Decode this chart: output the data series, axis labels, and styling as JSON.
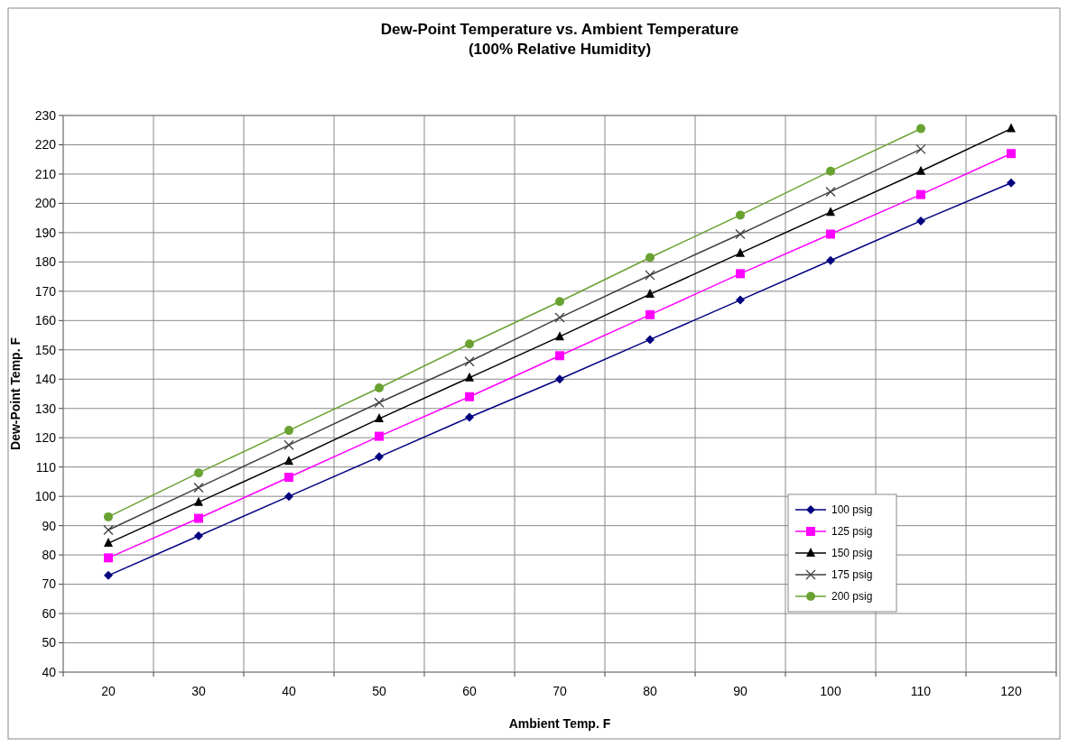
{
  "chart_data": {
    "type": "line",
    "title": "Dew-Point Temperature vs. Ambient Temperature",
    "subtitle": "(100% Relative Humidity)",
    "xlabel": "Ambient Temp. F",
    "ylabel": "Dew-Point Temp. F",
    "categories": [
      "20",
      "30",
      "40",
      "50",
      "60",
      "70",
      "80",
      "90",
      "100",
      "110",
      "120"
    ],
    "ylim": [
      40,
      230
    ],
    "yticks": [
      40,
      50,
      60,
      70,
      80,
      90,
      100,
      110,
      120,
      130,
      140,
      150,
      160,
      170,
      180,
      190,
      200,
      210,
      220,
      230
    ],
    "grid": true,
    "legend": "bottom right",
    "line_style": "solid",
    "series": [
      {
        "name": "100 psig",
        "color": "#000080",
        "marker": "diamond",
        "values": [
          73,
          86.5,
          100,
          113.5,
          127,
          140,
          153.5,
          167,
          180.5,
          194,
          207
        ]
      },
      {
        "name": "125 psig",
        "color": "#ff00ff",
        "marker": "square",
        "values": [
          79,
          92.5,
          106.5,
          120.5,
          134,
          148,
          162,
          176,
          189.5,
          203,
          217
        ]
      },
      {
        "name": "150 psig",
        "color": "#000000",
        "marker": "triangle",
        "values": [
          84,
          98,
          112,
          126.5,
          140.5,
          154.5,
          169,
          183,
          197,
          211,
          225.5
        ]
      },
      {
        "name": "175 psig",
        "color": "#404040",
        "marker": "cross",
        "values": [
          88.5,
          103,
          117.5,
          132,
          146,
          161,
          175.5,
          189.5,
          204,
          218.5,
          null
        ]
      },
      {
        "name": "200 psig",
        "color": "#6aa232",
        "marker": "circle",
        "values": [
          93,
          108,
          122.5,
          137,
          152,
          166.5,
          181.5,
          196,
          211,
          225.5,
          null
        ]
      }
    ]
  }
}
